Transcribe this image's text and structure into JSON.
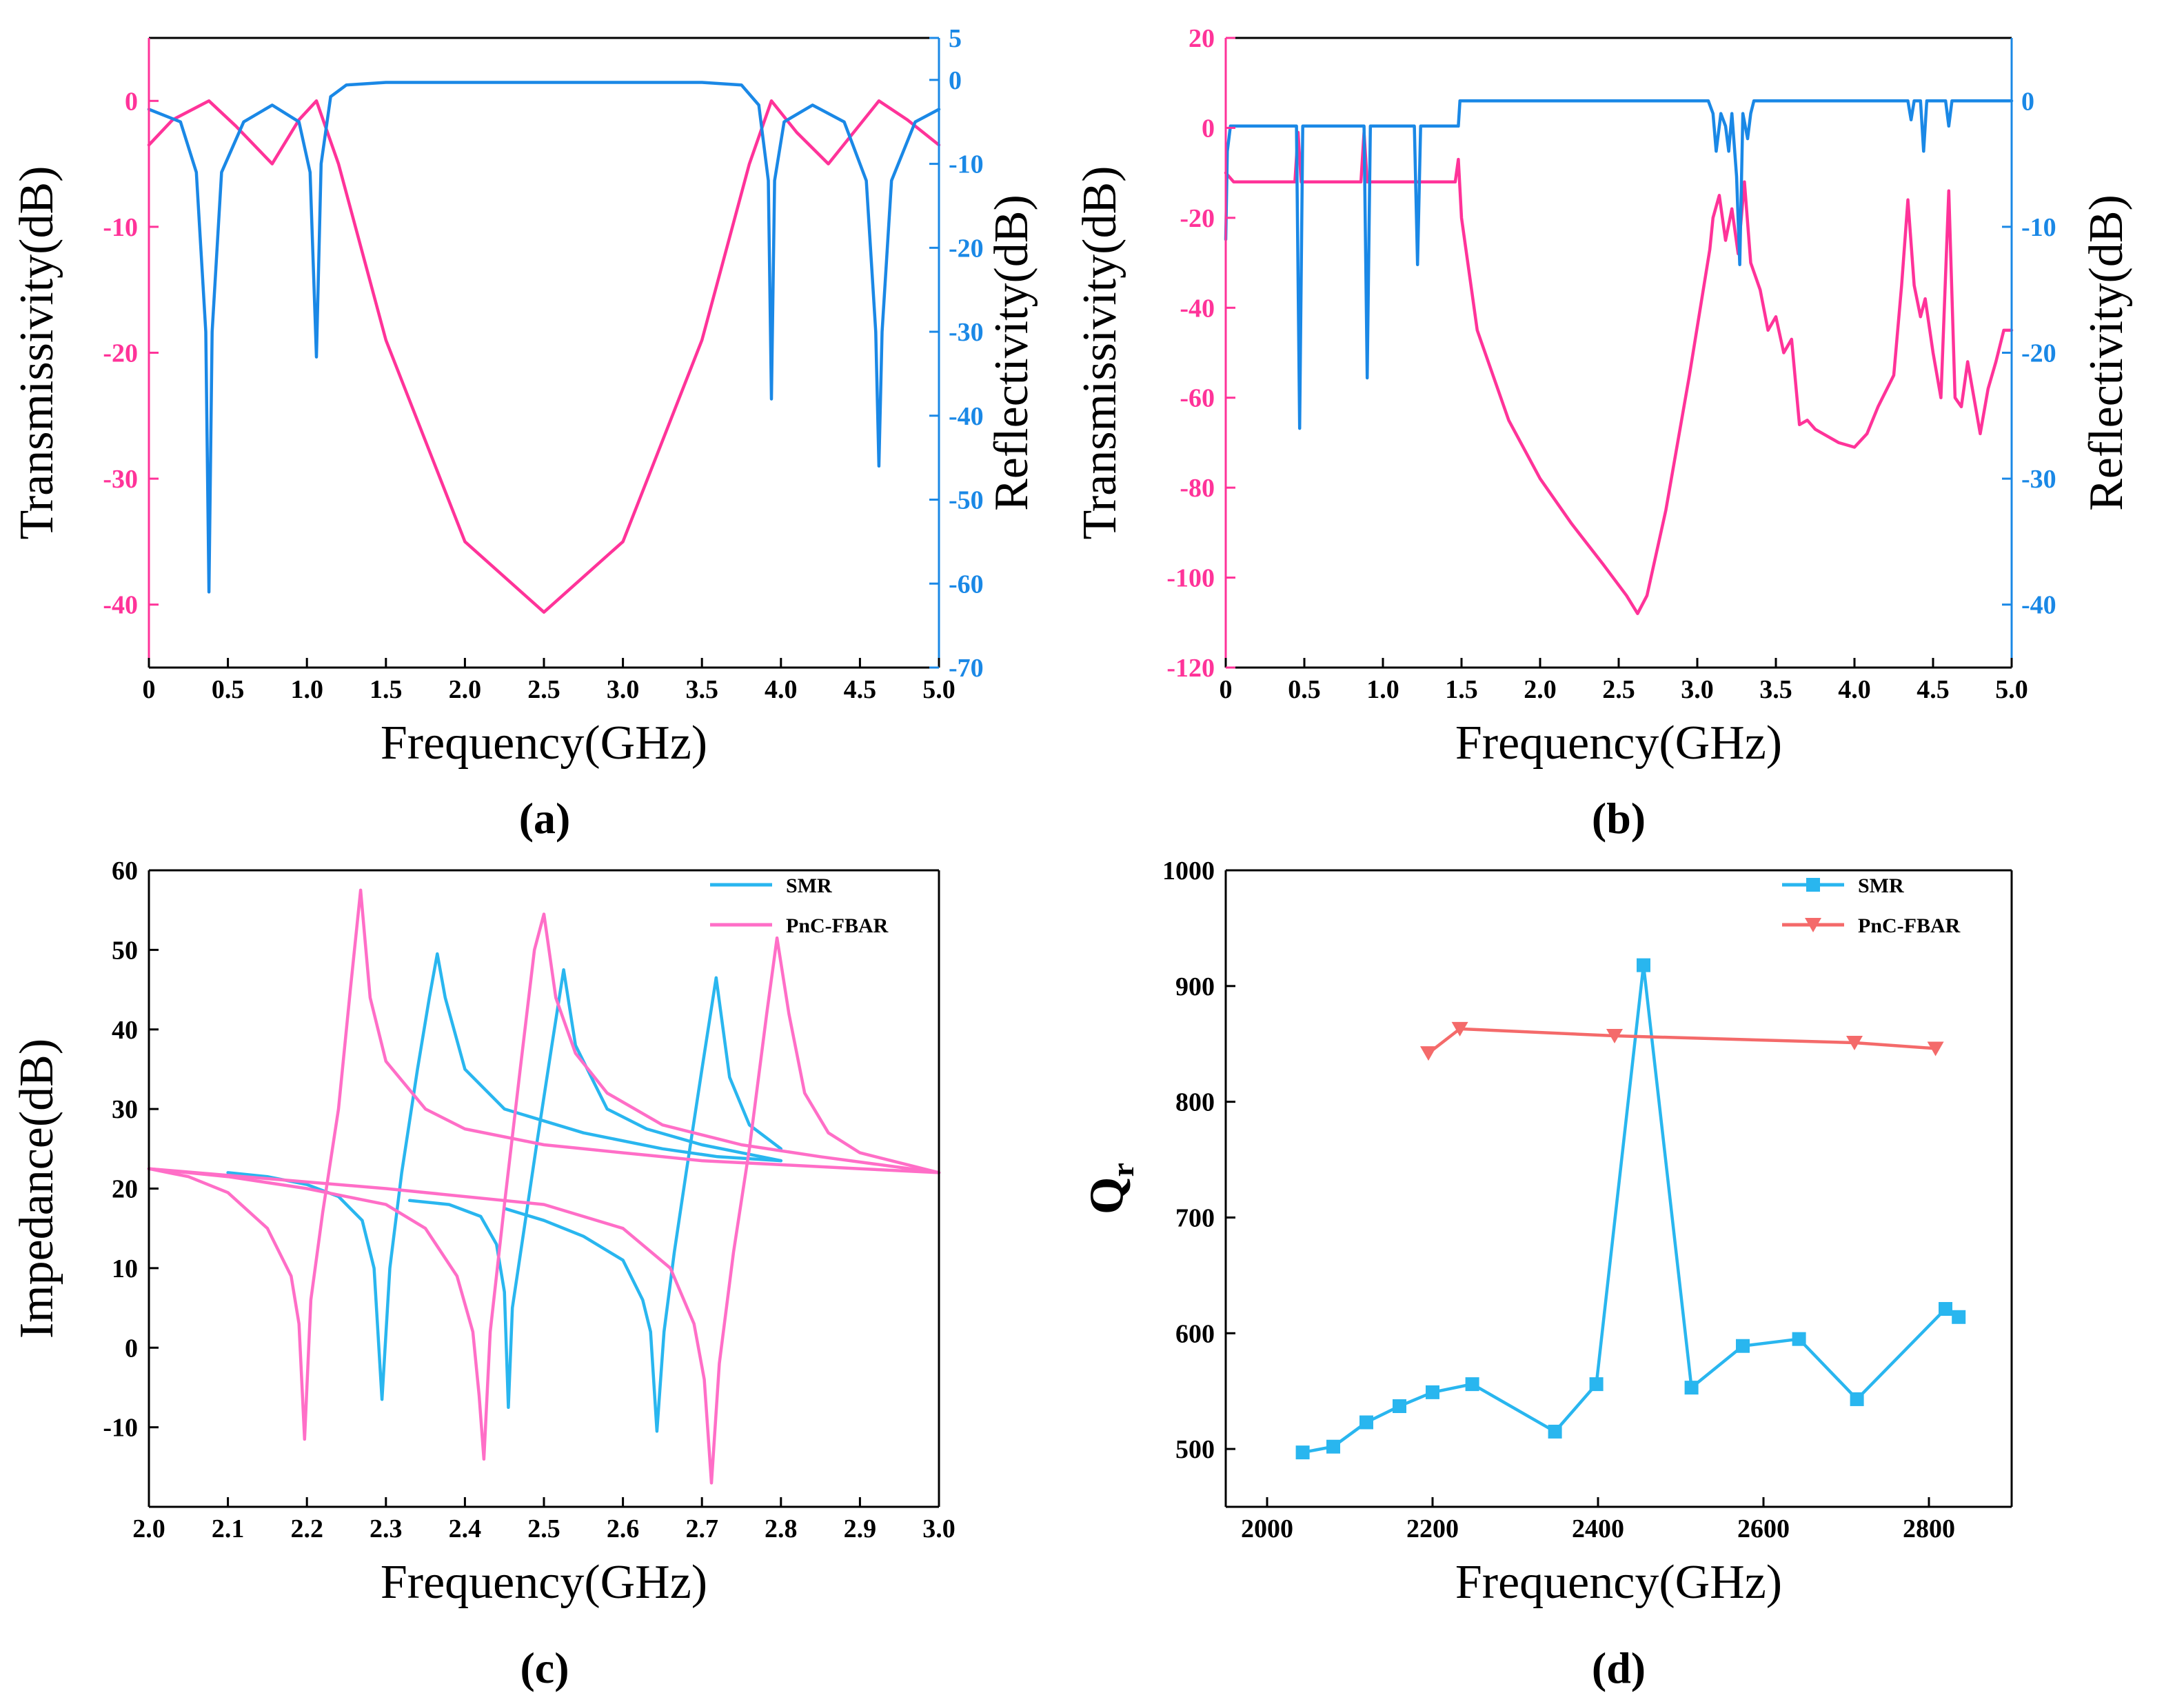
{
  "colors": {
    "pink": "#ff3399",
    "blue": "#1a88e6",
    "cyan": "#29b6ef",
    "magenta": "#ff6ec7",
    "salmon": "#f46a6a",
    "axis": "#000000"
  },
  "chart_data": [
    {
      "id": "a",
      "type": "line",
      "caption": "(a)",
      "xlabel": "Frequency(GHz)",
      "ylabel": "Transmissivity(dB)",
      "y2label": "Reflectivity(dB)",
      "xlim": [
        0,
        5
      ],
      "ylim": [
        -45,
        5
      ],
      "y2lim": [
        -70,
        5
      ],
      "xticks": [
        "0",
        "0.5",
        "1.0",
        "1.5",
        "2.0",
        "2.5",
        "3.0",
        "3.5",
        "4.0",
        "4.5",
        "5.0"
      ],
      "yticks": [
        "0",
        "-10",
        "-20",
        "-30",
        "-40"
      ],
      "y2ticks": [
        "5",
        "0",
        "-10",
        "-20",
        "-30",
        "-40",
        "-50",
        "-60",
        "-70"
      ],
      "series": [
        {
          "name": "Transmissivity",
          "axis": "left",
          "color": "pink",
          "x": [
            0,
            0.15,
            0.38,
            0.55,
            0.78,
            0.95,
            1.06,
            1.2,
            1.5,
            2.0,
            2.5,
            3.0,
            3.5,
            3.8,
            3.94,
            4.1,
            4.3,
            4.62,
            4.8,
            5.0
          ],
          "y": [
            -3.5,
            -1.5,
            0,
            -2,
            -5,
            -1.5,
            0,
            -5,
            -19,
            -35,
            -40.6,
            -35,
            -19,
            -5,
            0,
            -2.5,
            -5,
            0,
            -1.5,
            -3.5
          ]
        },
        {
          "name": "Reflectivity",
          "axis": "right",
          "color": "blue",
          "x": [
            0,
            0.2,
            0.3,
            0.36,
            0.38,
            0.4,
            0.46,
            0.6,
            0.78,
            0.95,
            1.02,
            1.06,
            1.09,
            1.15,
            1.25,
            1.5,
            2.5,
            3.5,
            3.75,
            3.86,
            3.92,
            3.94,
            3.96,
            4.02,
            4.2,
            4.4,
            4.54,
            4.6,
            4.62,
            4.64,
            4.7,
            4.85,
            5.0
          ],
          "y": [
            -3.5,
            -5,
            -11,
            -30,
            -61,
            -30,
            -11,
            -5,
            -3,
            -5,
            -11,
            -33,
            -10,
            -2,
            -0.6,
            -0.3,
            -0.3,
            -0.3,
            -0.6,
            -3,
            -12,
            -38,
            -12,
            -5,
            -3,
            -5,
            -12,
            -30,
            -46,
            -30,
            -12,
            -5,
            -3.5
          ]
        }
      ]
    },
    {
      "id": "b",
      "type": "line",
      "caption": "(b)",
      "xlabel": "Frequency(GHz)",
      "ylabel": "Transmissivity(dB)",
      "y2label": "Reflectivity(dB)",
      "xlim": [
        0,
        5
      ],
      "ylim": [
        -120,
        20
      ],
      "y2lim": [
        -45,
        5
      ],
      "xticks": [
        "0",
        "0.5",
        "1.0",
        "1.5",
        "2.0",
        "2.5",
        "3.0",
        "3.5",
        "4.0",
        "4.5",
        "5.0"
      ],
      "yticks": [
        "20",
        "0",
        "-20",
        "-40",
        "-60",
        "-80",
        "-100",
        "-120"
      ],
      "y2ticks": [
        "0",
        "-10",
        "-20",
        "-30",
        "-40"
      ],
      "series": [
        {
          "name": "Transmissivity",
          "axis": "left",
          "color": "pink",
          "x": [
            0,
            0.05,
            0.44,
            0.46,
            0.48,
            0.5,
            0.86,
            0.88,
            0.9,
            0.92,
            1.46,
            1.48,
            1.5,
            1.6,
            1.8,
            2.0,
            2.2,
            2.4,
            2.55,
            2.62,
            2.68,
            2.8,
            2.95,
            3.08,
            3.1,
            3.14,
            3.18,
            3.22,
            3.26,
            3.3,
            3.34,
            3.4,
            3.45,
            3.5,
            3.55,
            3.6,
            3.65,
            3.7,
            3.75,
            3.8,
            3.9,
            4.0,
            4.08,
            4.15,
            4.25,
            4.3,
            4.34,
            4.38,
            4.42,
            4.45,
            4.5,
            4.55,
            4.6,
            4.64,
            4.68,
            4.72,
            4.76,
            4.8,
            4.85,
            4.9,
            4.95,
            5.0
          ],
          "y": [
            -10,
            -12,
            -12,
            -1,
            -12,
            -12,
            -12,
            -1,
            -12,
            -12,
            -12,
            -7,
            -20,
            -45,
            -65,
            -78,
            -88,
            -97,
            -104,
            -108,
            -104,
            -85,
            -55,
            -27,
            -20,
            -15,
            -25,
            -18,
            -28,
            -12,
            -30,
            -36,
            -45,
            -42,
            -50,
            -47,
            -66,
            -65,
            -67,
            -68,
            -70,
            -71,
            -68,
            -62,
            -55,
            -35,
            -16,
            -35,
            -42,
            -38,
            -50,
            -60,
            -14,
            -60,
            -62,
            -52,
            -60,
            -68,
            -58,
            -52,
            -45,
            -45
          ]
        },
        {
          "name": "Reflectivity",
          "axis": "right",
          "color": "blue",
          "x": [
            0,
            0.01,
            0.03,
            0.06,
            0.45,
            0.47,
            0.49,
            0.5,
            0.88,
            0.9,
            0.92,
            0.95,
            1.2,
            1.22,
            1.24,
            1.26,
            1.48,
            1.49,
            1.5,
            3.07,
            3.1,
            3.12,
            3.15,
            3.18,
            3.2,
            3.22,
            3.25,
            3.27,
            3.29,
            3.32,
            3.34,
            3.36,
            3.38,
            4.3,
            4.34,
            4.36,
            4.38,
            4.42,
            4.44,
            4.46,
            4.58,
            4.6,
            4.62,
            5.0
          ],
          "y": [
            -11,
            -4,
            -2,
            -2,
            -2,
            -26,
            -2,
            -2,
            -2,
            -22,
            -2,
            -2,
            -2,
            -13,
            -2,
            -2,
            -2,
            0,
            0,
            0,
            -1,
            -4,
            -1,
            -2,
            -4,
            -1,
            -6,
            -13,
            -1,
            -3,
            -1,
            0,
            0,
            0,
            0,
            -1.5,
            0,
            0,
            -4,
            0,
            0,
            -2,
            0,
            0
          ]
        }
      ]
    },
    {
      "id": "c",
      "type": "line",
      "caption": "(c)",
      "xlabel": "Frequency(GHz)",
      "ylabel": "Impedance(dB)",
      "xlim": [
        2,
        3
      ],
      "ylim": [
        -20,
        60
      ],
      "xticks": [
        "2.0",
        "2.1",
        "2.2",
        "2.3",
        "2.4",
        "2.5",
        "2.6",
        "2.7",
        "2.8",
        "2.9",
        "3.0"
      ],
      "yticks": [
        "60",
        "50",
        "40",
        "30",
        "20",
        "10",
        "0",
        "-10"
      ],
      "legend": {
        "position": "top-right",
        "entries": [
          "SMR",
          "PnC-FBAR"
        ]
      },
      "series": [
        {
          "name": "SMR",
          "color": "cyan",
          "segments": [
            {
              "x": [
                2.1,
                2.15,
                2.2,
                2.24,
                2.27,
                2.285,
                2.295,
                2.305,
                2.32,
                2.34,
                2.355,
                2.365,
                2.375,
                2.4,
                2.45,
                2.55,
                2.65,
                2.72,
                2.8
              ],
              "y": [
                22,
                21.5,
                20.5,
                19,
                16,
                10,
                -6.5,
                10,
                22,
                35,
                44,
                49.5,
                44,
                35,
                30,
                27,
                25,
                24,
                23.5
              ]
            },
            {
              "x": [
                2.33,
                2.38,
                2.42,
                2.44,
                2.45,
                2.455,
                2.46,
                2.475,
                2.49,
                2.51,
                2.525,
                2.54,
                2.58,
                2.63,
                2.7,
                2.75,
                2.8
              ],
              "y": [
                18.5,
                18,
                16.5,
                13,
                7,
                -7.5,
                5,
                15,
                25,
                38,
                47.5,
                38,
                30,
                27.5,
                25.5,
                24.5,
                23.5
              ]
            },
            {
              "x": [
                2.45,
                2.5,
                2.55,
                2.6,
                2.625,
                2.635,
                2.643,
                2.652,
                2.665,
                2.68,
                2.7,
                2.718,
                2.735,
                2.76,
                2.8
              ],
              "y": [
                17.5,
                16,
                14,
                11,
                6,
                2,
                -10.5,
                2,
                12,
                22,
                35,
                46.5,
                34,
                28,
                25
              ]
            }
          ]
        },
        {
          "name": "PnC-FBAR",
          "color": "magenta",
          "segments": [
            {
              "x": [
                2.0,
                2.05,
                2.1,
                2.15,
                2.18,
                2.19,
                2.197,
                2.205,
                2.22,
                2.24,
                2.255,
                2.268,
                2.28,
                2.3,
                2.35,
                2.4,
                2.45,
                2.5,
                2.55,
                2.6,
                2.65,
                2.7,
                2.8,
                2.9,
                3.0
              ],
              "y": [
                22.5,
                21.5,
                19.5,
                15,
                9,
                3,
                -11.5,
                6,
                17,
                30,
                45,
                57.5,
                44,
                36,
                30,
                27.5,
                26.5,
                25.5,
                25,
                24.5,
                24,
                23.5,
                23,
                22.5,
                22
              ]
            },
            {
              "x": [
                2.0,
                2.1,
                2.2,
                2.3,
                2.35,
                2.39,
                2.41,
                2.418,
                2.424,
                2.432,
                2.45,
                2.47,
                2.488,
                2.5,
                2.515,
                2.54,
                2.58,
                2.65,
                2.75,
                2.85,
                3.0
              ],
              "y": [
                22.5,
                21.5,
                20,
                18,
                15,
                9,
                2,
                -6,
                -14,
                2,
                18,
                35,
                50,
                54.5,
                44,
                37,
                32,
                28,
                25.5,
                24,
                22
              ]
            },
            {
              "x": [
                2.0,
                2.3,
                2.5,
                2.6,
                2.66,
                2.69,
                2.703,
                2.712,
                2.722,
                2.74,
                2.76,
                2.782,
                2.795,
                2.81,
                2.83,
                2.86,
                2.9,
                3.0
              ],
              "y": [
                22.5,
                20,
                18,
                15,
                10,
                3,
                -4,
                -17,
                -2,
                12,
                25,
                42,
                51.5,
                42,
                32,
                27,
                24.5,
                22
              ]
            }
          ]
        }
      ]
    },
    {
      "id": "d",
      "type": "line",
      "caption": "(d)",
      "xlabel": "Frequency(GHz)",
      "ylabel": "Q",
      "ylabel_sub": "r",
      "xlim": [
        1950,
        2900
      ],
      "ylim": [
        450,
        1000
      ],
      "xticks": [
        "2000",
        "2200",
        "2400",
        "2600",
        "2800"
      ],
      "yticks": [
        "1000",
        "900",
        "800",
        "700",
        "600",
        "500"
      ],
      "legend": {
        "position": "top-right",
        "entries": [
          "SMR",
          "PnC-FBAR"
        ]
      },
      "series": [
        {
          "name": "SMR",
          "color": "cyan",
          "marker": "square",
          "x": [
            2043,
            2080,
            2120,
            2160,
            2200,
            2248,
            2348,
            2398,
            2455,
            2513,
            2575,
            2643,
            2713,
            2820,
            2836
          ],
          "y": [
            497,
            502,
            523,
            537,
            549,
            556,
            515,
            556,
            918,
            553,
            589,
            595,
            543,
            621,
            614
          ]
        },
        {
          "name": "PnC-FBAR",
          "color": "salmon",
          "marker": "triangle-down",
          "x": [
            2195,
            2233,
            2420,
            2710,
            2808
          ],
          "y": [
            842,
            863,
            857,
            851,
            846
          ]
        }
      ]
    }
  ]
}
